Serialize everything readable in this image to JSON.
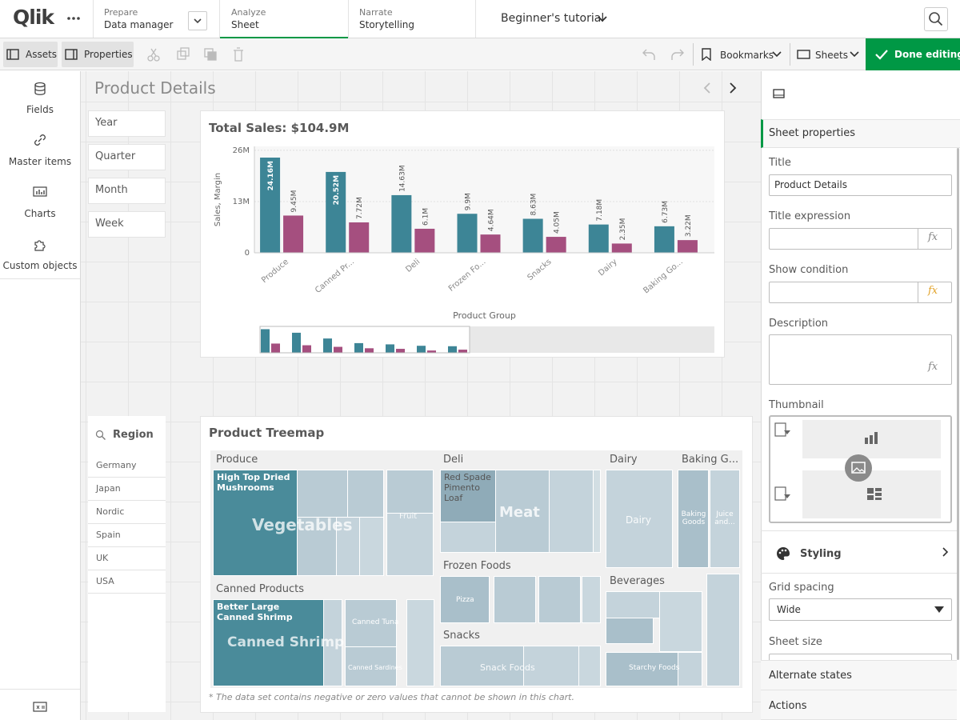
{
  "topbar": {
    "logo": "Qlik",
    "prepare": {
      "label": "Prepare",
      "sub": "Data manager"
    },
    "analyze": {
      "label": "Analyze",
      "sub": "Sheet"
    },
    "narrate": {
      "label": "Narrate",
      "sub": "Storytelling"
    },
    "app_name": "Beginner's tutorial"
  },
  "toolbar": {
    "assets": "Assets",
    "properties": "Properties",
    "bookmarks": "Bookmarks",
    "sheets": "Sheets",
    "done": "Done editing"
  },
  "left_panel": {
    "items": [
      "Fields",
      "Master items",
      "Charts",
      "Custom objects"
    ]
  },
  "sheet": {
    "title": "Product Details",
    "filters": [
      "Year",
      "Quarter",
      "Month",
      "Week"
    ],
    "region": {
      "title": "Region",
      "values": [
        "Germany",
        "Japan",
        "Nordic",
        "Spain",
        "UK",
        "USA"
      ]
    }
  },
  "bar_chart": {
    "type": "bar",
    "title": "Total Sales: $104.9M",
    "y_label": "Sales, Margin",
    "x_label": "Product Group",
    "categories": [
      "Produce",
      "Canned Pr...",
      "Deli",
      "Frozen Fo...",
      "Snacks",
      "Dairy",
      "Baking Go..."
    ],
    "series": [
      {
        "color": "#3d8596",
        "values": [
          24160000,
          20520000,
          14630000,
          9900000,
          8630000,
          7180000,
          6730000
        ],
        "value_labels": [
          "24.16M",
          "20.52M",
          "14.63M",
          "9.9M",
          "8.63M",
          "7.18M",
          "6.73M"
        ]
      },
      {
        "color": "#a54f7f",
        "values": [
          9450000,
          7720000,
          6100000,
          4640000,
          4050000,
          2350000,
          3220000
        ],
        "value_labels": [
          "9.45M",
          "7.72M",
          "6.1M",
          "4.64M",
          "4.05M",
          "2.35M",
          "3.22M"
        ]
      }
    ],
    "ylim": [
      0,
      27000000
    ],
    "yticks": [
      {
        "value": 0,
        "label": "0"
      },
      {
        "value": 13000000,
        "label": "13M"
      },
      {
        "value": 26000000,
        "label": "26M"
      }
    ],
    "grid": true
  },
  "treemap": {
    "title": "Product Treemap",
    "groups": [
      "Produce",
      "Deli",
      "Dairy",
      "Baking G...",
      "Canned Products",
      "Frozen Foods",
      "Snacks",
      "Beverages"
    ],
    "items": [
      "High Top Dried Mushrooms",
      "Vegetables",
      "Fruit",
      "Red Spade Pimento Loaf",
      "Meat",
      "Dairy",
      "Baking Goods",
      "Juice and...",
      "Better Large Canned Shrimp",
      "Canned Shrimp",
      "Canned Tuna",
      "Canned Sardines",
      "Pizza",
      "Snack Foods",
      "Starchy Foods"
    ],
    "note": "* The data set contains negative or zero values that cannot be shown in this chart."
  },
  "properties": {
    "header": "Sheet properties",
    "title_label": "Title",
    "title_value": "Product Details",
    "title_expression": "Title expression",
    "show_condition": "Show condition",
    "description": "Description",
    "fx_icon": "fx",
    "thumbnail": "Thumbnail",
    "styling": "Styling",
    "grid_spacing": "Grid spacing",
    "grid_spacing_value": "Wide",
    "sheet_size": "Sheet size",
    "alternate_states": "Alternate states",
    "actions": "Actions"
  }
}
